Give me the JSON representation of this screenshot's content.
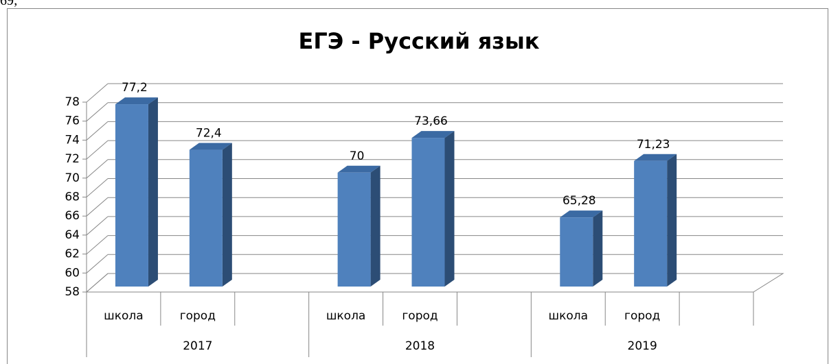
{
  "header_fragment": "69;",
  "chart_data": {
    "type": "bar3d",
    "title": "ЕГЭ - Русский язык",
    "categories": [
      "школа",
      "город",
      null,
      "школа",
      "город",
      null,
      "школа",
      "город",
      null
    ],
    "groups": [
      "2017",
      "2018",
      "2019"
    ],
    "values": [
      77.2,
      72.4,
      null,
      70,
      73.66,
      null,
      65.28,
      71.23,
      null
    ],
    "value_labels": [
      "77,2",
      "72,4",
      null,
      "70",
      "73,66",
      null,
      "65,28",
      "71,23",
      null
    ],
    "color": "#4f81bd",
    "ylim": [
      58,
      78
    ],
    "yticks": [
      58,
      60,
      62,
      64,
      66,
      68,
      70,
      72,
      74,
      76,
      78
    ],
    "grid": true
  }
}
